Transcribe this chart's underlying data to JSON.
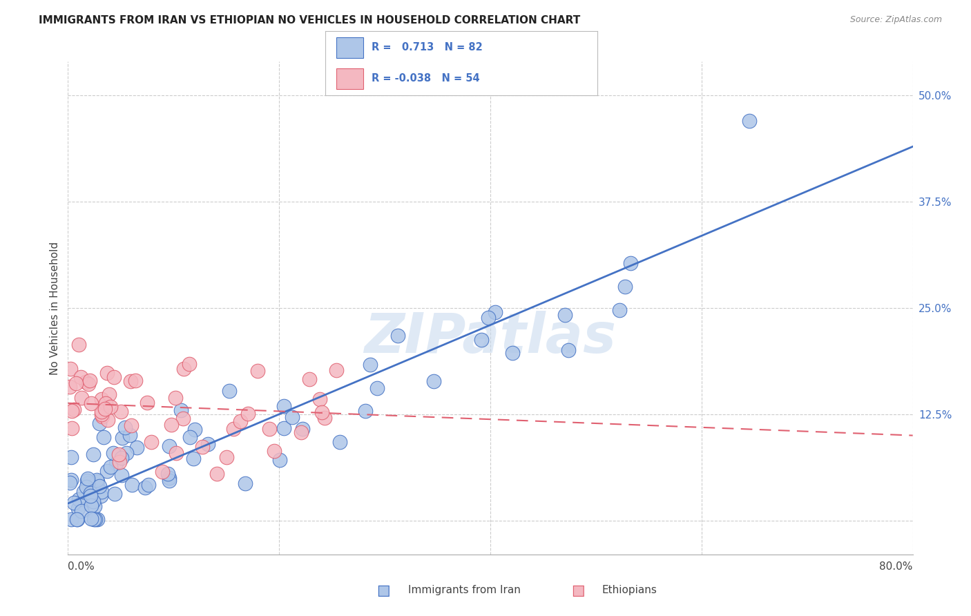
{
  "title": "IMMIGRANTS FROM IRAN VS ETHIOPIAN NO VEHICLES IN HOUSEHOLD CORRELATION CHART",
  "source": "Source: ZipAtlas.com",
  "ylabel": "No Vehicles in Household",
  "ytick_values": [
    0.0,
    0.125,
    0.25,
    0.375,
    0.5
  ],
  "ytick_labels": [
    "",
    "12.5%",
    "25.0%",
    "37.5%",
    "50.0%"
  ],
  "xmin": 0.0,
  "xmax": 0.8,
  "ymin": -0.04,
  "ymax": 0.54,
  "legend_label_blue": "Immigrants from Iran",
  "legend_label_pink": "Ethiopians",
  "watermark": "ZIPatlas",
  "background_color": "#ffffff",
  "grid_color": "#cccccc",
  "blue_color": "#4472c4",
  "pink_color": "#e06070",
  "blue_light": "#aec6e8",
  "pink_light": "#f4b8c1",
  "iran_R": 0.713,
  "iran_N": 82,
  "eth_R": -0.038,
  "eth_N": 54,
  "iran_line_x": [
    0.0,
    0.8
  ],
  "iran_line_y": [
    0.02,
    0.44
  ],
  "eth_line_x": [
    0.0,
    0.8
  ],
  "eth_line_y": [
    0.138,
    0.1
  ]
}
